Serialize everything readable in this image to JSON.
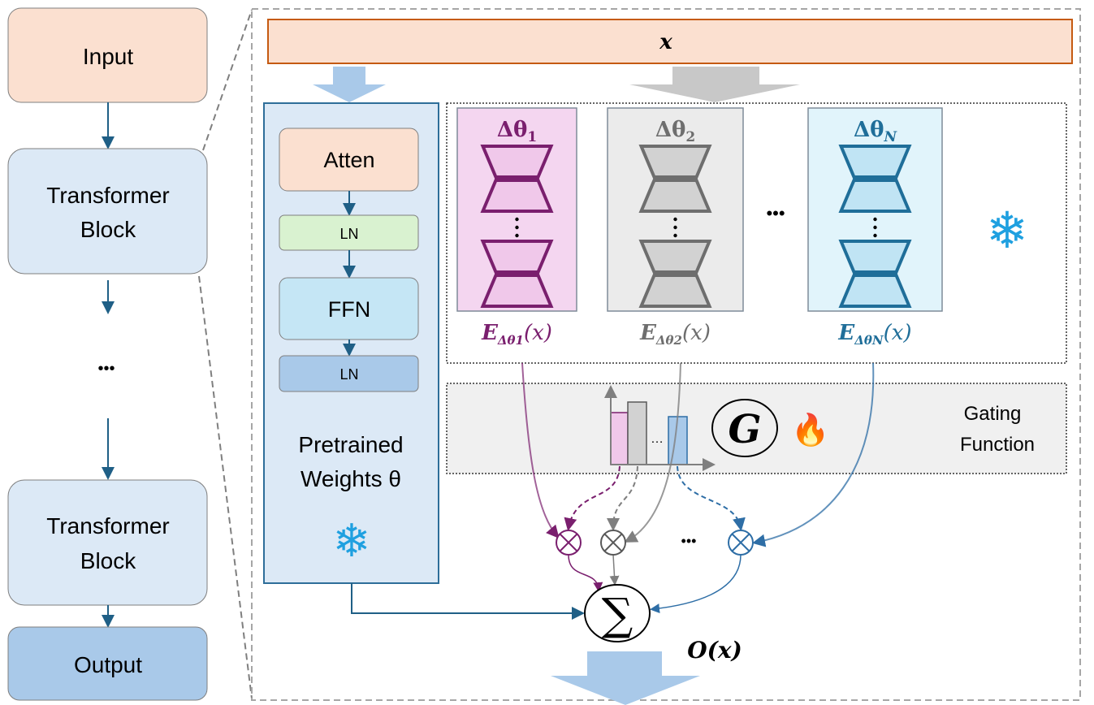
{
  "left_column": {
    "input_label": "Input",
    "block1_line1": "Transformer",
    "block1_line2": "Block",
    "ellipsis": "•••",
    "block2_line1": "Transformer",
    "block2_line2": "Block",
    "output_label": "Output"
  },
  "input_bar": {
    "label": "x"
  },
  "pretrained": {
    "atten": "Atten",
    "ln1": "LN",
    "ffn": "FFN",
    "ln2": "LN",
    "title_line1": "Pretrained",
    "title_line2": "Weights θ",
    "frozen_icon": "snowflake-icon"
  },
  "experts": {
    "items": [
      {
        "title": "Δθ",
        "sub": "1",
        "output": "E",
        "output_sub": "Δθ1",
        "output_arg": "(x)",
        "color": "#7a1f6e",
        "fill": "#f4d6f0",
        "trap_fill": "#f0c8ea"
      },
      {
        "title": "Δθ",
        "sub": "2",
        "output": "E",
        "output_sub": "Δθ2",
        "output_arg": "(x)",
        "color": "#6e6e6e",
        "fill": "#ebebeb",
        "trap_fill": "#d2d2d2"
      },
      {
        "title": "Δθ",
        "sub": "N",
        "output": "E",
        "output_sub": "ΔθN",
        "output_arg": "(x)",
        "color": "#1f6e99",
        "fill": "#e1f4fb",
        "trap_fill": "#c0e4f4"
      }
    ],
    "ellipsis": "•••",
    "frozen_icon": "snowflake-icon"
  },
  "gating": {
    "label_line1": "Gating",
    "label_line2": "Function",
    "symbol": "G",
    "bar_ellipsis": "…",
    "trainable_icon": "fire-icon",
    "fire_glyph": "🔥"
  },
  "combine": {
    "multiply_ellipsis": "•••",
    "sum_symbol": "∑",
    "output_label": "O(x)"
  },
  "colors": {
    "peach": "#fbe0d0",
    "light_blue": "#dce9f6",
    "mid_blue": "#a9c9e9",
    "dark_blue": "#1f5f86",
    "purple": "#7a1f6e",
    "gray": "#7f7f7f",
    "orange_border": "#c55a11"
  }
}
